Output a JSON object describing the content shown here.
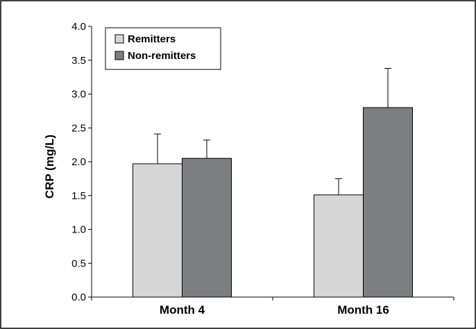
{
  "chart_data": {
    "type": "bar",
    "categories": [
      "Month 4",
      "Month 16"
    ],
    "series": [
      {
        "name": "Remitters",
        "color": "#d6d6d6",
        "values": [
          1.97,
          1.51
        ],
        "error": [
          0.44,
          0.24
        ]
      },
      {
        "name": "Non-remitters",
        "color": "#7d7e80",
        "values": [
          2.05,
          2.8
        ],
        "error": [
          0.27,
          0.58
        ]
      }
    ],
    "title": "",
    "xlabel": "",
    "ylabel": "CRP (mg/L)",
    "ylim": [
      0,
      4.0
    ],
    "yticks": [
      "0.0",
      "0.5",
      "1.0",
      "1.5",
      "2.0",
      "2.5",
      "3.0",
      "3.5",
      "4.0"
    ],
    "grid": false,
    "legend_position": "top-left"
  }
}
